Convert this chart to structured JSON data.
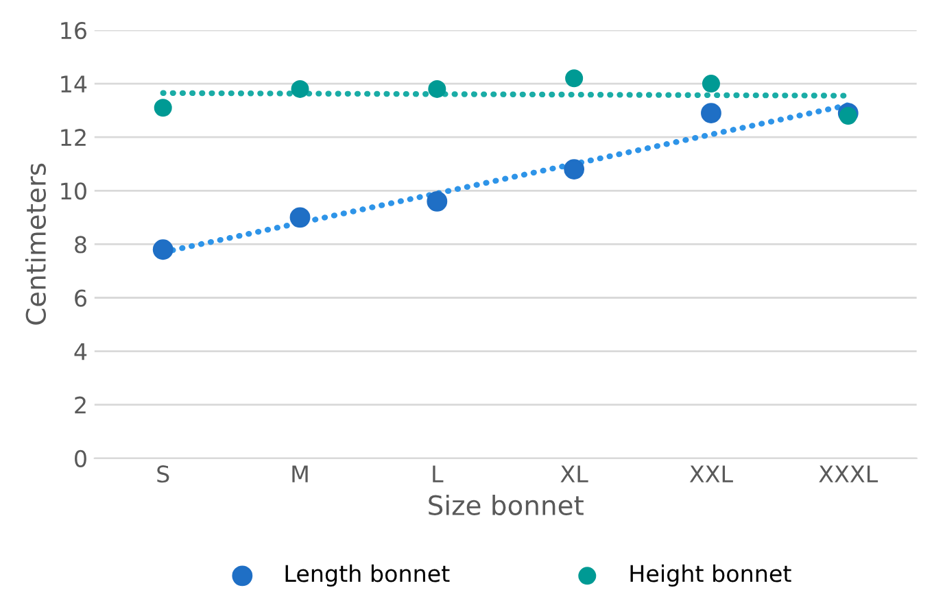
{
  "chart_data": {
    "type": "scatter",
    "xlabel": "Size bonnet",
    "ylabel": "Centimeters",
    "categories": [
      "S",
      "M",
      "L",
      "XL",
      "XXL",
      "XXXL"
    ],
    "series": [
      {
        "name": "Length bonnet",
        "color": "#1f6fc5",
        "values": [
          7.8,
          9.0,
          9.6,
          10.8,
          12.9,
          12.9
        ]
      },
      {
        "name": "Height bonnet",
        "color": "#009a94",
        "values": [
          13.1,
          13.8,
          13.8,
          14.2,
          14.0,
          12.8
        ]
      },
      {
        "type": "line",
        "color": "#2e94e8",
        "x": [
          "S",
          "XXXL"
        ],
        "values": [
          7.7,
          13.2
        ],
        "line_style": "dotted",
        "marker": "none"
      },
      {
        "type": "line",
        "color": "#1aaca6",
        "x": [
          "S",
          "XXXL"
        ],
        "values": [
          13.65,
          13.55
        ],
        "line_style": "dotted",
        "marker": "none"
      }
    ],
    "ylim": [
      0,
      16
    ],
    "yticks": [
      0,
      2,
      4,
      6,
      8,
      10,
      12,
      14,
      16
    ],
    "grid": "y",
    "legend": "bottom",
    "marker": "circle"
  }
}
